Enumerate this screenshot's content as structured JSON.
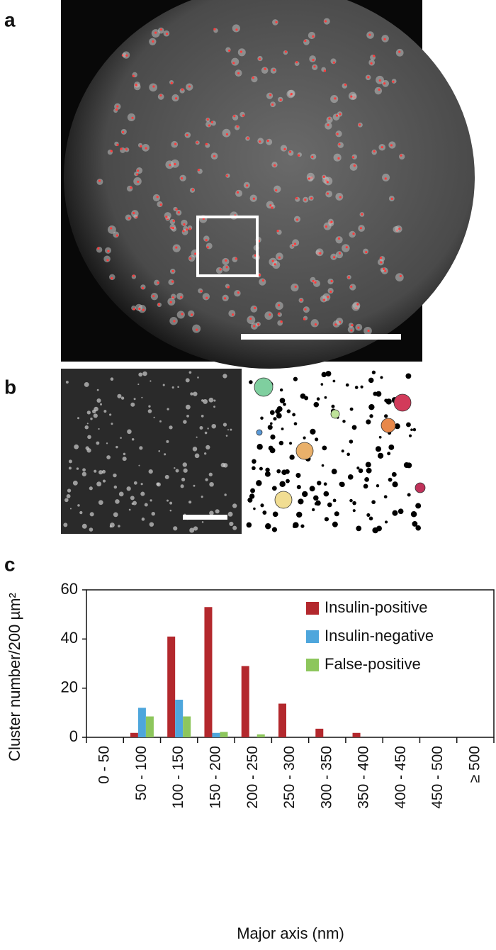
{
  "panel_labels": [
    "a",
    "b",
    "c"
  ],
  "chart_data": {
    "type": "bar",
    "y_label": "Cluster number/200 µm²",
    "x_label": "Major axis (nm)",
    "categories": [
      "0 - 50",
      "50 - 100",
      "100 - 150",
      "150 - 200",
      "200 - 250",
      "250 - 300",
      "300 - 350",
      "350 - 400",
      "400 - 450",
      "450 - 500",
      "≥ 500"
    ],
    "series": [
      {
        "name": "Insulin-positive",
        "color": "#b3282d",
        "values": [
          0,
          1.8,
          41,
          53,
          29,
          13.7,
          3.5,
          1.8,
          0,
          0,
          0
        ]
      },
      {
        "name": "Insulin-negative",
        "color": "#4ea6dc",
        "values": [
          0,
          12,
          15.3,
          1.8,
          0,
          0,
          0,
          0,
          0,
          0,
          0
        ]
      },
      {
        "name": "False-positive",
        "color": "#8dc65c",
        "values": [
          0,
          8.5,
          8.5,
          2.2,
          1.2,
          0,
          0,
          0,
          0,
          0,
          0
        ]
      }
    ],
    "ylim": [
      0,
      60
    ],
    "yticks": [
      0,
      20,
      40,
      60
    ],
    "legend": "top-right"
  }
}
